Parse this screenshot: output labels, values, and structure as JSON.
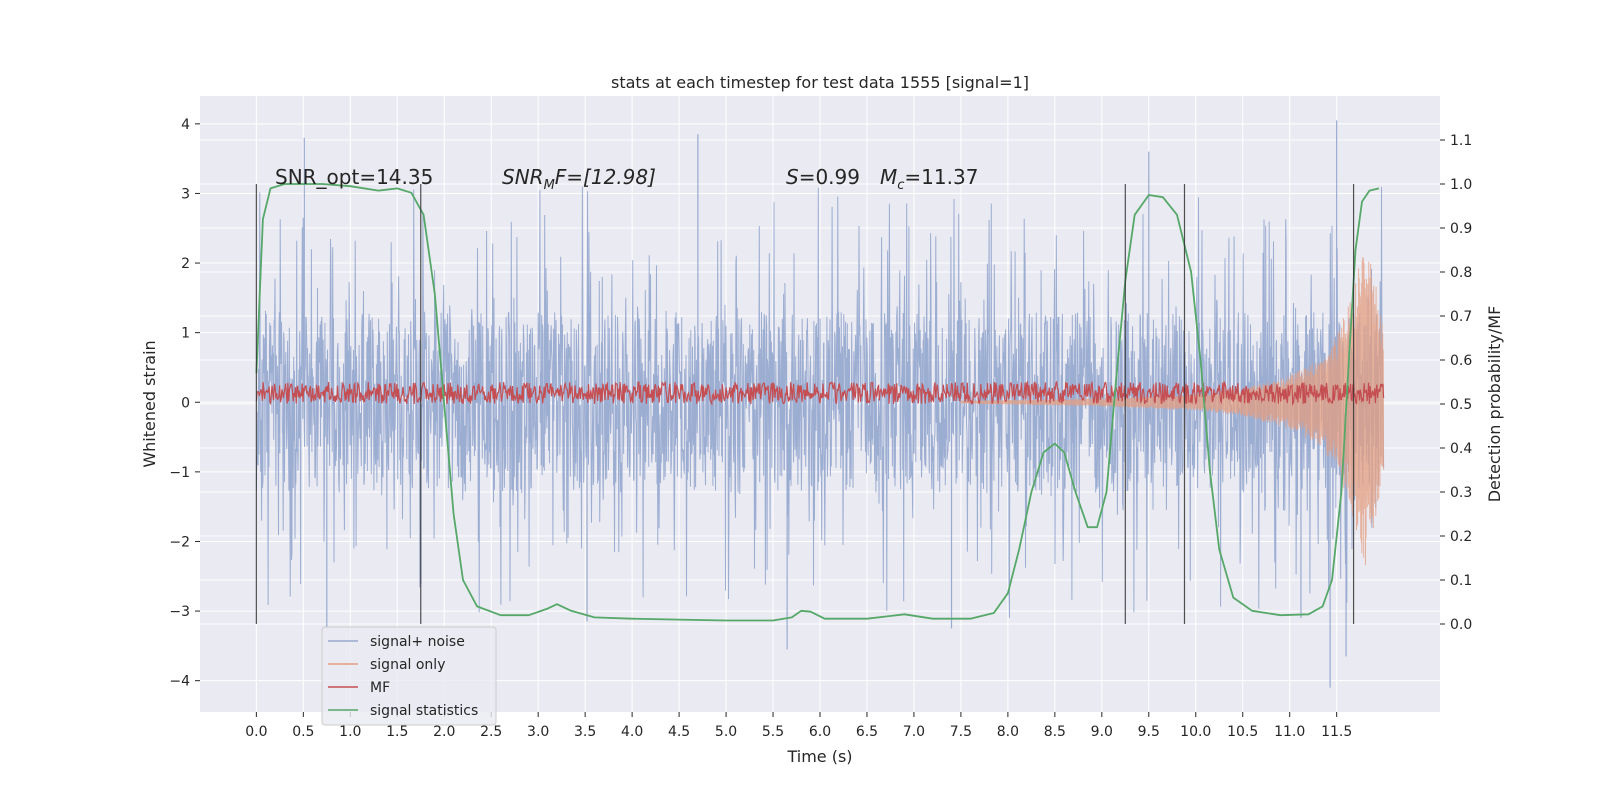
{
  "chart_data": {
    "type": "line",
    "title": "stats at each timestep for test data 1555 [signal=1]",
    "xlabel": "Time (s)",
    "ylabel": "Whitened strain",
    "y2label": "Detection probability/MF",
    "xlim": [
      -0.6,
      12.6
    ],
    "ylim": [
      -4.45,
      4.4
    ],
    "y2lim": [
      -0.2,
      1.2
    ],
    "x_ticks": [
      0.0,
      0.5,
      1.0,
      1.5,
      2.0,
      2.5,
      3.0,
      3.5,
      4.0,
      4.5,
      5.0,
      5.5,
      6.0,
      6.5,
      7.0,
      7.5,
      8.0,
      8.5,
      9.0,
      9.5,
      10.0,
      10.5,
      11.0,
      11.5
    ],
    "x_tick_labels": [
      "0.0",
      "0.5",
      "1.0",
      "1.5",
      "2.0",
      "2.5",
      "3.0",
      "3.5",
      "4.0",
      "4.5",
      "5.0",
      "5.5",
      "6.0",
      "6.5",
      "7.0",
      "7.5",
      "8.0",
      "8.5",
      "9.0",
      "9.5",
      "10.0",
      "10.5",
      "11.0",
      "11.5"
    ],
    "y_ticks": [
      -4,
      -3,
      -2,
      -1,
      0,
      1,
      2,
      3,
      4
    ],
    "y_tick_labels": [
      "−4",
      "−3",
      "−2",
      "−1",
      "0",
      "1",
      "2",
      "3",
      "4"
    ],
    "y2_ticks": [
      0.0,
      0.1,
      0.2,
      0.3,
      0.4,
      0.5,
      0.6,
      0.7,
      0.8,
      0.9,
      1.0,
      1.1
    ],
    "y2_tick_labels": [
      "0.0",
      "0.1",
      "0.2",
      "0.3",
      "0.4",
      "0.5",
      "0.6",
      "0.7",
      "0.8",
      "0.9",
      "1.0",
      "1.1"
    ],
    "grid": true,
    "legend_position": "lower-left",
    "annotations": {
      "snr_opt": "SNR_opt=14.35",
      "snr_mf_name": "SNR",
      "snr_mf_sub": "M",
      "snr_mf_rest": "F=[12.98]",
      "s_name": "S",
      "s_value": "=0.99",
      "mc_name": "M",
      "mc_sub": "c",
      "mc_value": "=11.37"
    },
    "vertical_markers_s": [
      0.0,
      1.75,
      9.25,
      9.88,
      11.68
    ],
    "series": [
      {
        "name": "signal+ noise",
        "axis": "left",
        "color": "#98aad0",
        "style": "noise",
        "x_range": [
          0.0,
          12.0
        ],
        "core_amplitude": 1.3,
        "peak_values": [
          {
            "x": 0.51,
            "y": 3.8
          },
          {
            "x": 0.75,
            "y": -3.25
          },
          {
            "x": 3.52,
            "y": -3.15
          },
          {
            "x": 4.7,
            "y": 3.85
          },
          {
            "x": 5.65,
            "y": -3.55
          },
          {
            "x": 7.4,
            "y": -3.25
          },
          {
            "x": 11.5,
            "y": 4.05
          },
          {
            "x": 11.43,
            "y": -4.1
          },
          {
            "x": 11.6,
            "y": -3.65
          },
          {
            "x": 11.12,
            "y": -3.1
          },
          {
            "x": 9.5,
            "y": 3.6
          },
          {
            "x": 1.75,
            "y": -2.6
          }
        ]
      },
      {
        "name": "signal only",
        "axis": "left",
        "color": "#e39e80",
        "style": "chirp",
        "x_range": [
          7.5,
          12.0
        ],
        "envelope": [
          {
            "x": 7.5,
            "y": 0.02
          },
          {
            "x": 9.0,
            "y": 0.06
          },
          {
            "x": 10.0,
            "y": 0.12
          },
          {
            "x": 10.5,
            "y": 0.2
          },
          {
            "x": 11.0,
            "y": 0.38
          },
          {
            "x": 11.3,
            "y": 0.62
          },
          {
            "x": 11.5,
            "y": 0.95
          },
          {
            "x": 11.65,
            "y": 1.5
          },
          {
            "x": 11.75,
            "y": 2.2
          },
          {
            "x": 11.8,
            "y": 2.5
          },
          {
            "x": 12.0,
            "y": 1.2
          }
        ]
      },
      {
        "name": "MF",
        "axis": "right",
        "color": "#c44e52",
        "style": "band",
        "x_range": [
          0.0,
          12.0
        ],
        "center": 0.52,
        "range": [
          0.5,
          0.55
        ]
      },
      {
        "name": "signal statistics",
        "axis": "right",
        "color": "#55a868",
        "style": "line",
        "points": [
          {
            "x": 0.0,
            "y": 0.57
          },
          {
            "x": 0.07,
            "y": 0.92
          },
          {
            "x": 0.15,
            "y": 0.99
          },
          {
            "x": 0.3,
            "y": 1.0
          },
          {
            "x": 0.7,
            "y": 1.0
          },
          {
            "x": 1.0,
            "y": 0.995
          },
          {
            "x": 1.3,
            "y": 0.985
          },
          {
            "x": 1.5,
            "y": 0.99
          },
          {
            "x": 1.65,
            "y": 0.98
          },
          {
            "x": 1.78,
            "y": 0.93
          },
          {
            "x": 1.9,
            "y": 0.75
          },
          {
            "x": 2.0,
            "y": 0.5
          },
          {
            "x": 2.1,
            "y": 0.25
          },
          {
            "x": 2.2,
            "y": 0.1
          },
          {
            "x": 2.35,
            "y": 0.04
          },
          {
            "x": 2.6,
            "y": 0.02
          },
          {
            "x": 2.9,
            "y": 0.02
          },
          {
            "x": 3.1,
            "y": 0.035
          },
          {
            "x": 3.2,
            "y": 0.045
          },
          {
            "x": 3.35,
            "y": 0.03
          },
          {
            "x": 3.6,
            "y": 0.015
          },
          {
            "x": 4.0,
            "y": 0.012
          },
          {
            "x": 4.5,
            "y": 0.01
          },
          {
            "x": 5.0,
            "y": 0.008
          },
          {
            "x": 5.5,
            "y": 0.008
          },
          {
            "x": 5.7,
            "y": 0.015
          },
          {
            "x": 5.8,
            "y": 0.03
          },
          {
            "x": 5.9,
            "y": 0.028
          },
          {
            "x": 6.05,
            "y": 0.012
          },
          {
            "x": 6.5,
            "y": 0.012
          },
          {
            "x": 6.9,
            "y": 0.022
          },
          {
            "x": 7.2,
            "y": 0.012
          },
          {
            "x": 7.6,
            "y": 0.012
          },
          {
            "x": 7.85,
            "y": 0.025
          },
          {
            "x": 8.0,
            "y": 0.07
          },
          {
            "x": 8.12,
            "y": 0.17
          },
          {
            "x": 8.25,
            "y": 0.3
          },
          {
            "x": 8.38,
            "y": 0.39
          },
          {
            "x": 8.5,
            "y": 0.41
          },
          {
            "x": 8.6,
            "y": 0.39
          },
          {
            "x": 8.72,
            "y": 0.3
          },
          {
            "x": 8.85,
            "y": 0.22
          },
          {
            "x": 8.95,
            "y": 0.22
          },
          {
            "x": 9.05,
            "y": 0.3
          },
          {
            "x": 9.15,
            "y": 0.55
          },
          {
            "x": 9.25,
            "y": 0.78
          },
          {
            "x": 9.35,
            "y": 0.93
          },
          {
            "x": 9.5,
            "y": 0.975
          },
          {
            "x": 9.65,
            "y": 0.97
          },
          {
            "x": 9.8,
            "y": 0.93
          },
          {
            "x": 9.95,
            "y": 0.8
          },
          {
            "x": 10.05,
            "y": 0.6
          },
          {
            "x": 10.15,
            "y": 0.35
          },
          {
            "x": 10.25,
            "y": 0.17
          },
          {
            "x": 10.4,
            "y": 0.06
          },
          {
            "x": 10.6,
            "y": 0.03
          },
          {
            "x": 10.9,
            "y": 0.02
          },
          {
            "x": 11.2,
            "y": 0.022
          },
          {
            "x": 11.35,
            "y": 0.04
          },
          {
            "x": 11.45,
            "y": 0.1
          },
          {
            "x": 11.55,
            "y": 0.3
          },
          {
            "x": 11.63,
            "y": 0.6
          },
          {
            "x": 11.7,
            "y": 0.85
          },
          {
            "x": 11.77,
            "y": 0.96
          },
          {
            "x": 11.85,
            "y": 0.985
          },
          {
            "x": 11.95,
            "y": 0.99
          }
        ]
      }
    ]
  }
}
